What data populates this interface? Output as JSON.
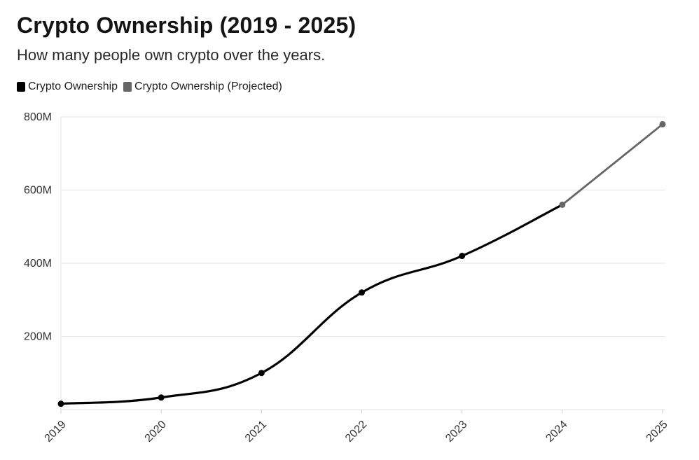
{
  "chart_data": {
    "type": "line",
    "title": "Crypto Ownership (2019 - 2025)",
    "subtitle": "How many people own crypto over the years.",
    "xlabel": "",
    "ylabel": "",
    "categories": [
      "2019",
      "2020",
      "2021",
      "2022",
      "2023",
      "2024",
      "2025"
    ],
    "ylim": [
      0,
      800
    ],
    "y_ticks": [
      200,
      400,
      600,
      800
    ],
    "y_tick_labels": [
      "200M",
      "400M",
      "600M",
      "800M"
    ],
    "grid": true,
    "legend_position": "top-left",
    "series": [
      {
        "name": "Crypto Ownership",
        "color": "#000000",
        "x": [
          "2019",
          "2020",
          "2021",
          "2022",
          "2023",
          "2024"
        ],
        "values": [
          16,
          33,
          100,
          320,
          420,
          560
        ]
      },
      {
        "name": "Crypto Ownership (Projected)",
        "color": "#666666",
        "x": [
          "2024",
          "2025"
        ],
        "values": [
          560,
          780
        ]
      }
    ]
  }
}
